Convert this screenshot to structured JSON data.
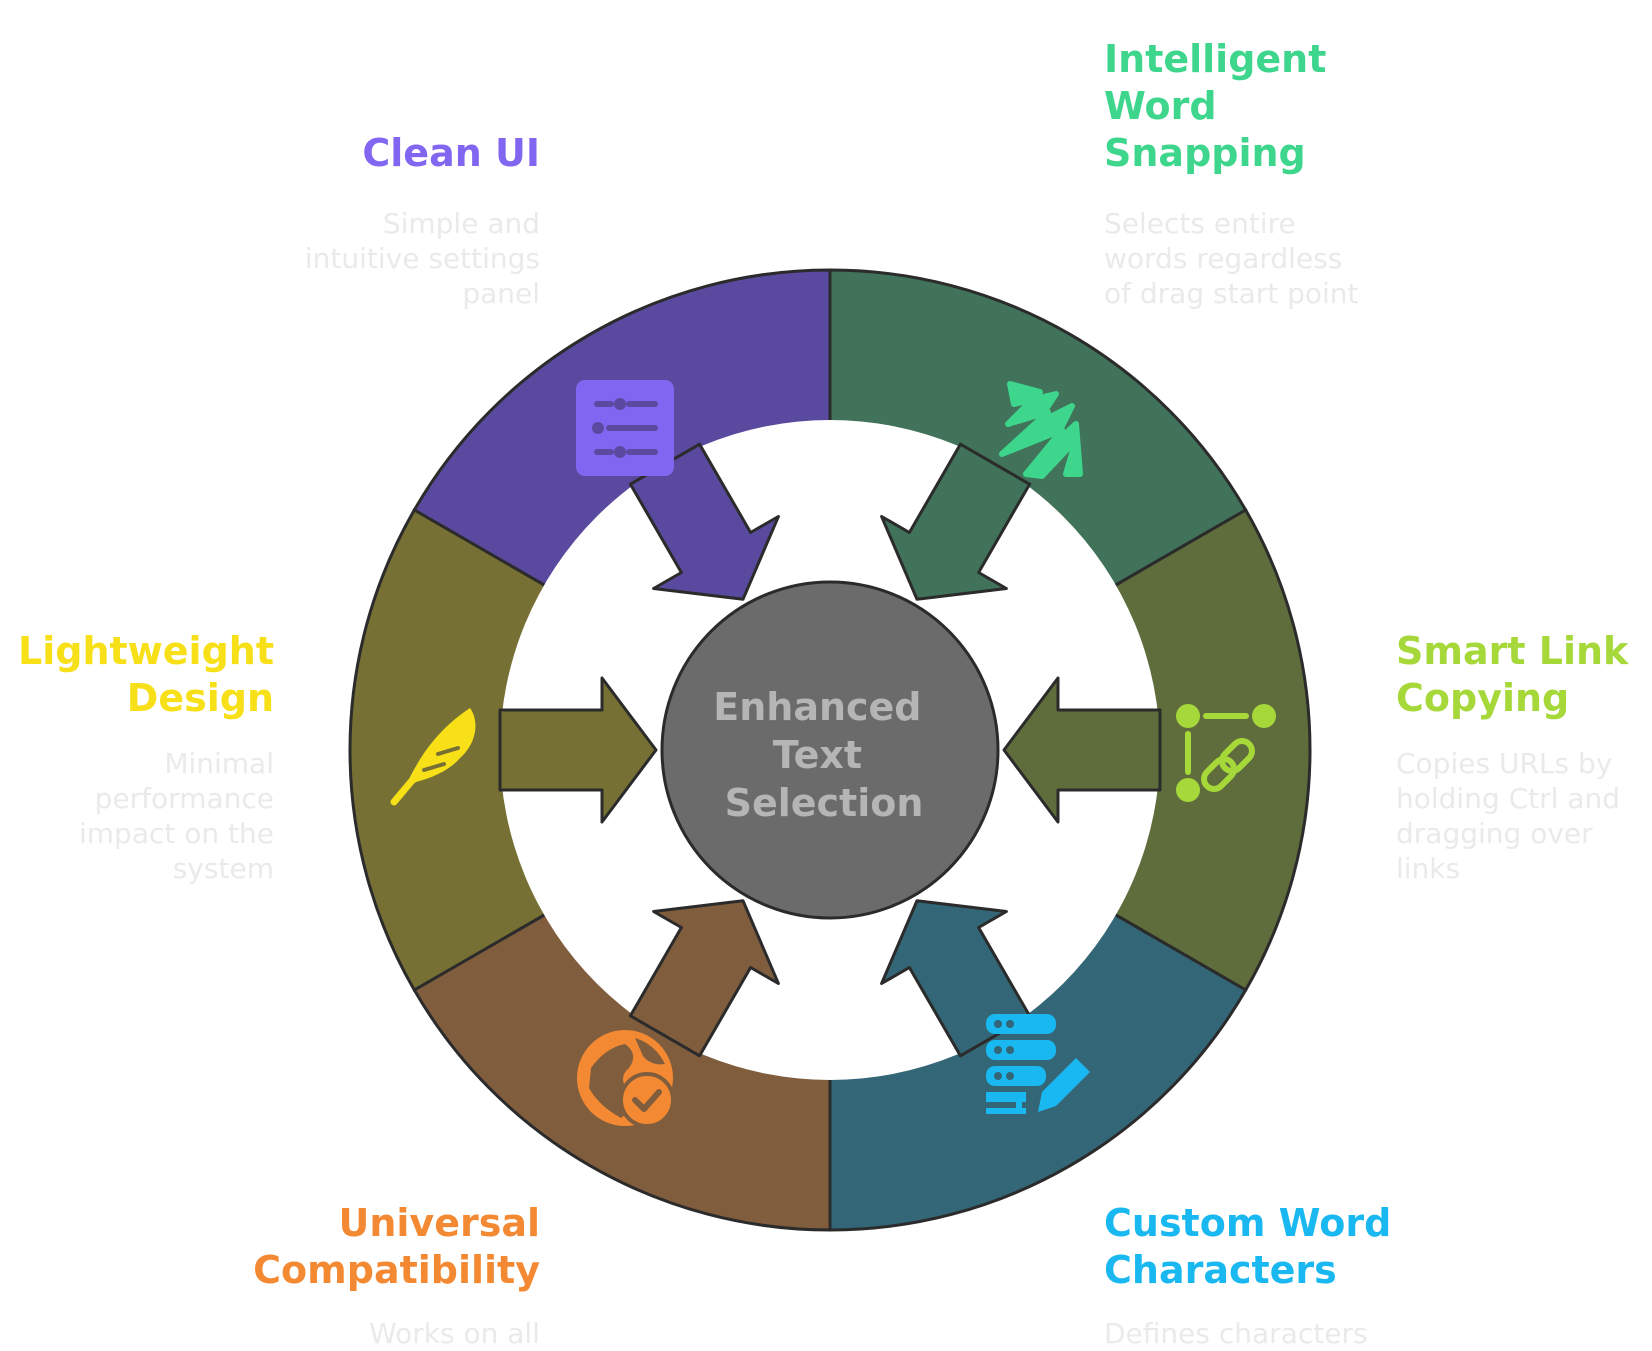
{
  "center": {
    "label_lines": [
      "Enhanced",
      "Text",
      "Selection"
    ]
  },
  "features": [
    {
      "title_lines": [
        "Clean UI"
      ],
      "description_lines": [
        "Simple and",
        "intuitive settings",
        "panel"
      ],
      "color": "#8066f0",
      "segment_color": "#5a4a9f",
      "icon": "sliders-list-icon"
    },
    {
      "title_lines": [
        "Intelligent",
        "Word",
        "Snapping"
      ],
      "description_lines": [
        "Selects entire",
        "words regardless",
        "of drag start point"
      ],
      "color": "#3dd68c",
      "segment_color": "#40735a",
      "icon": "snap-scribble-icon"
    },
    {
      "title_lines": [
        "Smart Link",
        "Copying"
      ],
      "description_lines": [
        "Copies URLs by",
        "holding Ctrl and",
        "dragging over",
        "links"
      ],
      "color": "#a6d83a",
      "segment_color": "#5f6d3c",
      "icon": "link-nodes-icon"
    },
    {
      "title_lines": [
        "Custom Word",
        "Characters"
      ],
      "description_lines": [
        "Defines characters"
      ],
      "color": "#1ab8f0",
      "segment_color": "#336676",
      "icon": "database-edit-icon"
    },
    {
      "title_lines": [
        "Universal",
        "Compatibility"
      ],
      "description_lines": [
        "Works on all"
      ],
      "color": "#f38a33",
      "segment_color": "#805d3d",
      "icon": "globe-check-icon"
    },
    {
      "title_lines": [
        "Lightweight",
        "Design"
      ],
      "description_lines": [
        "Minimal",
        "performance",
        "impact on the",
        "system"
      ],
      "color": "#f7e017",
      "segment_color": "#777034",
      "icon": "feather-icon"
    }
  ]
}
